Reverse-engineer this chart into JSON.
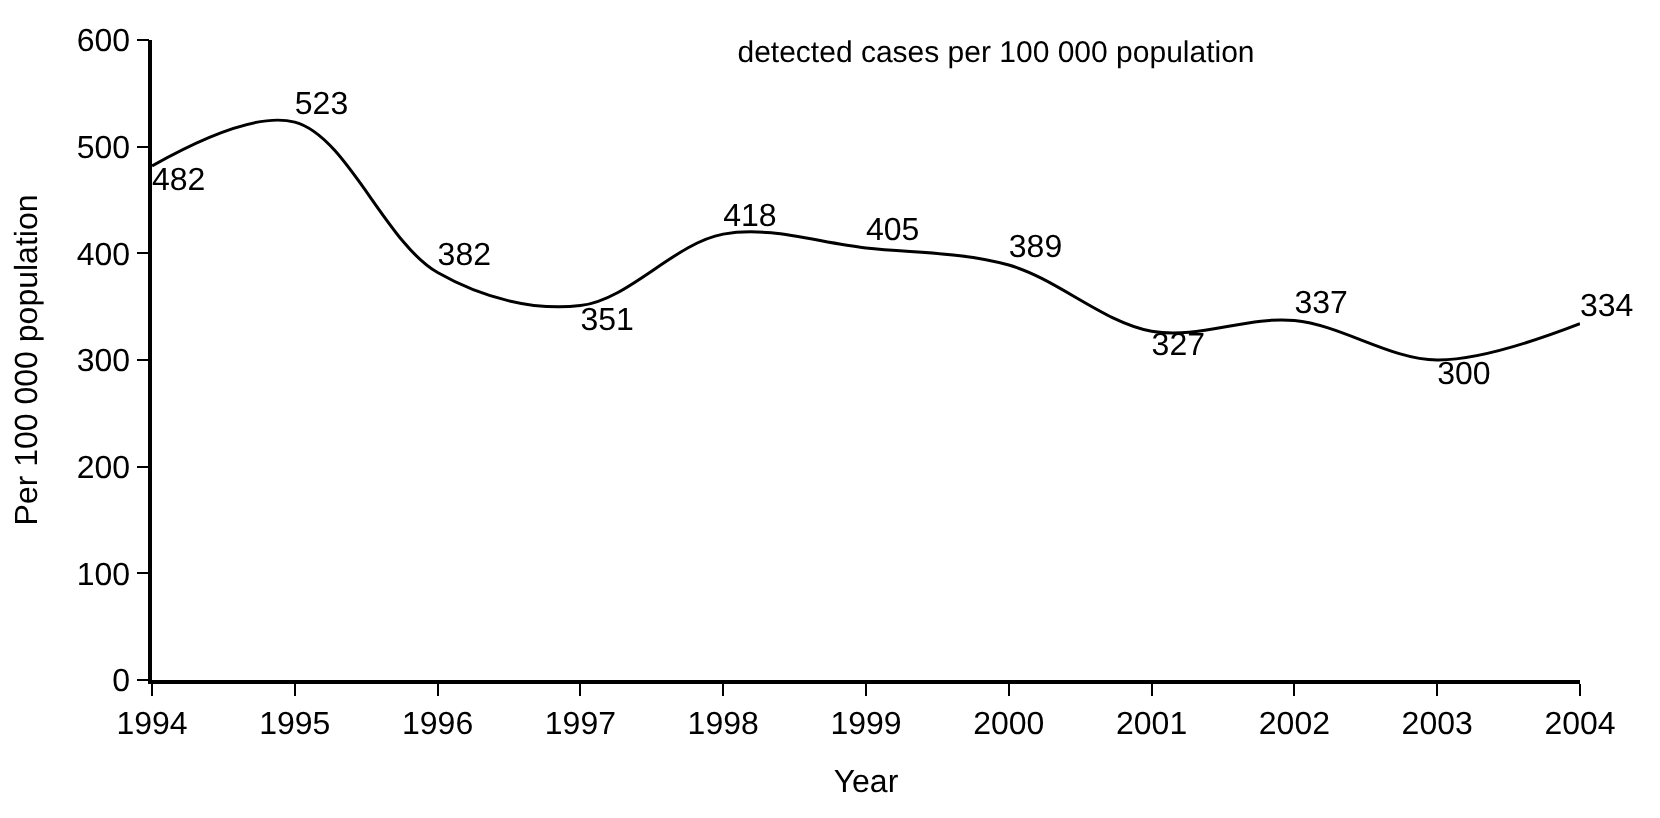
{
  "chart_data": {
    "type": "line",
    "title": "detected cases per 100 000 population",
    "xlabel": "Year",
    "ylabel": "Per 100 000 population",
    "x": [
      1994,
      1995,
      1996,
      1997,
      1998,
      1999,
      2000,
      2001,
      2002,
      2003,
      2004
    ],
    "series": [
      {
        "color": "#000000",
        "values": [
          482,
          523,
          382,
          351,
          418,
          405,
          389,
          327,
          337,
          300,
          334
        ]
      }
    ],
    "xlim": [
      1994,
      2004
    ],
    "xticks": [
      1994,
      1995,
      1996,
      1997,
      1998,
      1999,
      2000,
      2001,
      2002,
      2003,
      2004
    ],
    "ylim": [
      0,
      600
    ],
    "yticks": [
      0,
      100,
      200,
      300,
      400,
      500,
      600
    ],
    "data_labels": true,
    "marker": "none",
    "line_style": "solid"
  }
}
